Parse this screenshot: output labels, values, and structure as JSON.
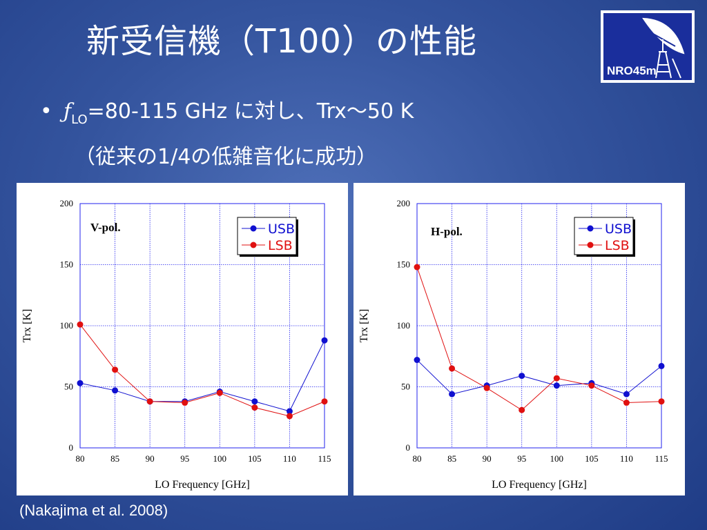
{
  "slide": {
    "title": "新受信機（T100）の性能",
    "bullet_symbol": "•",
    "bullet_f": "ƒ",
    "bullet_sub": "LO",
    "bullet_rest": "=80-115 GHz に対し、Trx〜50 K",
    "bullet_line2": "（従来の1/4の低雑音化に成功）",
    "logo_text": "NRO45m",
    "citation": "(Nakajima et al. 2008)"
  },
  "colors": {
    "usb": "#1010d0",
    "lsb": "#e01010",
    "grid": "#2222ee"
  },
  "chart_data": [
    {
      "type": "line",
      "annotation": "V-pol.",
      "xlabel": "LO Frequency [GHz]",
      "ylabel": "Trx [K]",
      "xlim": [
        80,
        115
      ],
      "ylim": [
        0,
        200
      ],
      "x_ticks": [
        80,
        85,
        90,
        95,
        100,
        105,
        110,
        115
      ],
      "y_ticks": [
        0,
        50,
        100,
        150,
        200
      ],
      "grid": true,
      "legend": "top-right",
      "x": [
        80,
        85,
        90,
        95,
        100,
        105,
        110,
        115
      ],
      "series": [
        {
          "name": "USB",
          "color": "#1010d0",
          "values": [
            53,
            47,
            38,
            38,
            46,
            38,
            30,
            88
          ]
        },
        {
          "name": "LSB",
          "color": "#e01010",
          "values": [
            101,
            64,
            38,
            37,
            45,
            33,
            26,
            38
          ]
        }
      ]
    },
    {
      "type": "line",
      "annotation": "H-pol.",
      "xlabel": "LO Frequency [GHz]",
      "ylabel": "Trx [K]",
      "xlim": [
        80,
        115
      ],
      "ylim": [
        0,
        200
      ],
      "x_ticks": [
        80,
        85,
        90,
        95,
        100,
        105,
        110,
        115
      ],
      "y_ticks": [
        0,
        50,
        100,
        150,
        200
      ],
      "grid": true,
      "legend": "top-right",
      "x": [
        80,
        85,
        90,
        95,
        100,
        105,
        110,
        115
      ],
      "series": [
        {
          "name": "USB",
          "color": "#1010d0",
          "values": [
            72,
            44,
            51,
            59,
            51,
            53,
            44,
            67
          ]
        },
        {
          "name": "LSB",
          "color": "#e01010",
          "values": [
            148,
            65,
            49,
            31,
            57,
            51,
            37,
            38
          ]
        }
      ]
    }
  ]
}
